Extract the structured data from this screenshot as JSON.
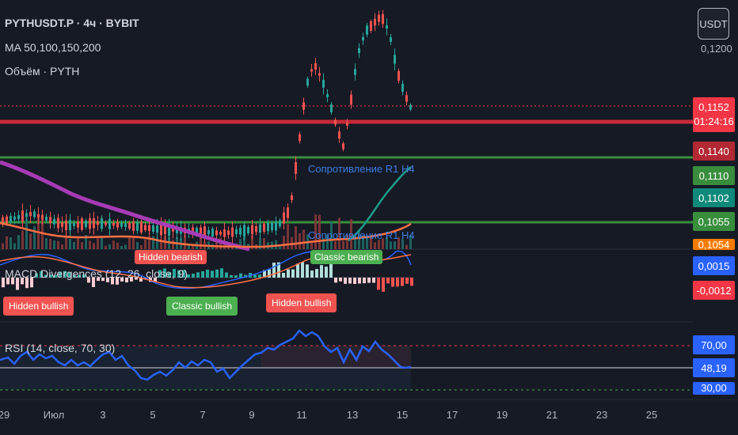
{
  "legend": {
    "symbol": "PYTHUSDT.P · 4ч · BYBIT",
    "ma": "MA 50,100,150,200",
    "volume": "Объём · PYTH",
    "macd": "MACD Divergences (12, 26, close, 9)",
    "rsi": "RSI (14, close, 70, 30)"
  },
  "currency_button": "USDT",
  "price_axis": {
    "top_tick": "0,1200",
    "tags": [
      {
        "text": "0,1152",
        "color": "#f23645"
      },
      {
        "text": "01:24:16",
        "color": "#f23645"
      },
      {
        "text": "0,1140",
        "color": "#b22833"
      },
      {
        "text": "0,1110",
        "color": "#388e3c"
      },
      {
        "text": "0,1102",
        "color": "#0f8a7a"
      },
      {
        "text": "0,1055",
        "color": "#388e3c"
      },
      {
        "text": "0,1054",
        "color": "#f57c00"
      }
    ]
  },
  "macd_axis": {
    "tags": [
      {
        "text": "0,0015",
        "color": "#2962ff"
      },
      {
        "text": "-0,0012",
        "color": "#f23645"
      }
    ]
  },
  "rsi_axis": {
    "tags": [
      {
        "text": "70,00",
        "color": "#2962ff"
      },
      {
        "text": "48,19",
        "color": "#2962ff"
      },
      {
        "text": "30,00",
        "color": "#2962ff"
      }
    ]
  },
  "annotations": {
    "resistance": "Сопротивление R1 H4",
    "support": "Сопротивление R1 H4"
  },
  "signals": {
    "hidden_bearish": "Hidden bearish",
    "hidden_bullish_1": "Hidden bullish",
    "classic_bullish": "Classic bullish",
    "hidden_bullish_2": "Hidden bullish",
    "classic_bearish": "Classic bearish"
  },
  "time_axis": [
    "29",
    "Июл",
    "3",
    "5",
    "7",
    "9",
    "11",
    "13",
    "15",
    "17",
    "19",
    "21",
    "23",
    "25"
  ],
  "colors": {
    "background": "#161a25",
    "up": "#26a69a",
    "down": "#ef5350",
    "ma_purple": "#9c27b0",
    "ma_orange": "#ff7043",
    "ma_teal": "#26a69a",
    "rsi_line": "#2962ff"
  }
}
